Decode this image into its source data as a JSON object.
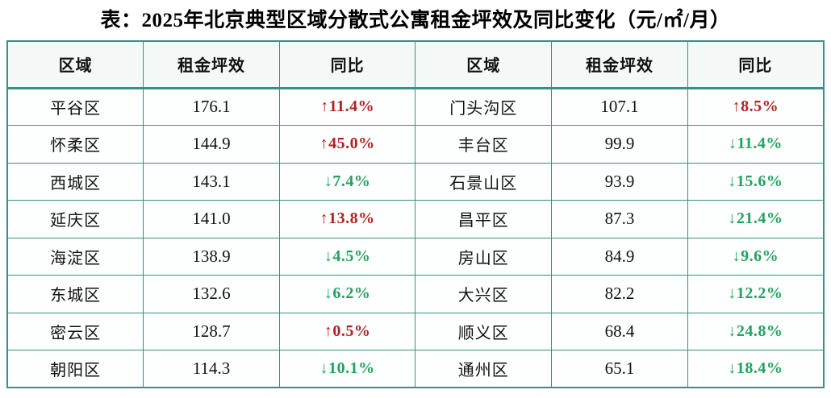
{
  "title": "表：2025年北京典型区域分散式公寓租金坪效及同比变化（元/㎡/月）",
  "colors": {
    "up_red": "#b22222",
    "down_green": "#22a35e",
    "border_teal": "#359184",
    "header_bg": "#f4f9f7"
  },
  "chart_data": {
    "type": "table",
    "title": "表：2025年北京典型区域分散式公寓租金坪效及同比变化（元/㎡/月）",
    "unit": "元/㎡/月",
    "layout": "two side-by-side panels sharing one grid, each with 3 columns",
    "columns": [
      "区域",
      "租金坪效",
      "同比",
      "区域",
      "租金坪效",
      "同比"
    ],
    "rows": [
      {
        "left": {
          "district": "平谷区",
          "rent": "176.1",
          "yoy": 11.4,
          "yoy_display": "↑11.4%",
          "trend": "up"
        },
        "right": {
          "district": "门头沟区",
          "rent": "107.1",
          "yoy": 8.5,
          "yoy_display": "↑8.5%",
          "trend": "up"
        }
      },
      {
        "left": {
          "district": "怀柔区",
          "rent": "144.9",
          "yoy": 45.0,
          "yoy_display": "↑45.0%",
          "trend": "up"
        },
        "right": {
          "district": "丰台区",
          "rent": "99.9",
          "yoy": -11.4,
          "yoy_display": "↓11.4%",
          "trend": "down"
        }
      },
      {
        "left": {
          "district": "西城区",
          "rent": "143.1",
          "yoy": -7.4,
          "yoy_display": "↓7.4%",
          "trend": "down"
        },
        "right": {
          "district": "石景山区",
          "rent": "93.9",
          "yoy": -15.6,
          "yoy_display": "↓15.6%",
          "trend": "down"
        }
      },
      {
        "left": {
          "district": "延庆区",
          "rent": "141.0",
          "yoy": 13.8,
          "yoy_display": "↑13.8%",
          "trend": "up"
        },
        "right": {
          "district": "昌平区",
          "rent": "87.3",
          "yoy": -21.4,
          "yoy_display": "↓21.4%",
          "trend": "down"
        }
      },
      {
        "left": {
          "district": "海淀区",
          "rent": "138.9",
          "yoy": -4.5,
          "yoy_display": "↓4.5%",
          "trend": "down"
        },
        "right": {
          "district": "房山区",
          "rent": "84.9",
          "yoy": -9.6,
          "yoy_display": "↓9.6%",
          "trend": "down"
        }
      },
      {
        "left": {
          "district": "东城区",
          "rent": "132.6",
          "yoy": -6.2,
          "yoy_display": "↓6.2%",
          "trend": "down"
        },
        "right": {
          "district": "大兴区",
          "rent": "82.2",
          "yoy": -12.2,
          "yoy_display": "↓12.2%",
          "trend": "down"
        }
      },
      {
        "left": {
          "district": "密云区",
          "rent": "128.7",
          "yoy": 0.5,
          "yoy_display": "↑0.5%",
          "trend": "up"
        },
        "right": {
          "district": "顺义区",
          "rent": "68.4",
          "yoy": -24.8,
          "yoy_display": "↓24.8%",
          "trend": "down"
        }
      },
      {
        "left": {
          "district": "朝阳区",
          "rent": "114.3",
          "yoy": -10.1,
          "yoy_display": "↓10.1%",
          "trend": "down"
        },
        "right": {
          "district": "通州区",
          "rent": "65.1",
          "yoy": -18.4,
          "yoy_display": "↓18.4%",
          "trend": "down"
        }
      }
    ]
  }
}
